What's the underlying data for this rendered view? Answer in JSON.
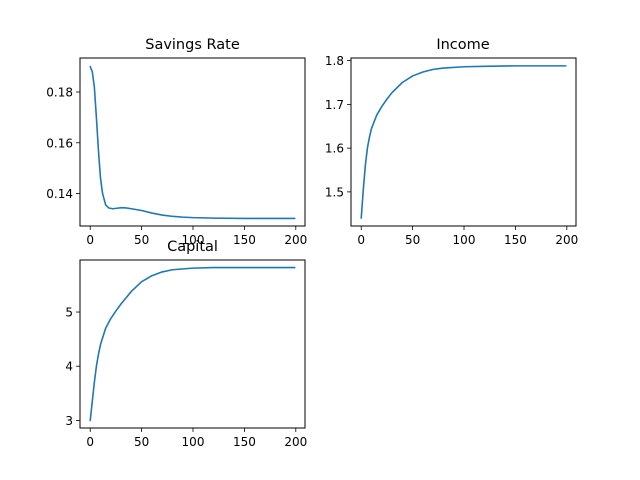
{
  "figure": {
    "line_color": "#1f77b4",
    "background": "#ffffff"
  },
  "chart_data": [
    {
      "type": "line",
      "title": "Savings Rate",
      "xlabel": "",
      "ylabel": "",
      "xlim": [
        -9.95,
        208.95
      ],
      "ylim": [
        0.1272,
        0.1934
      ],
      "xticks": [
        0,
        50,
        100,
        150,
        200
      ],
      "yticks": [
        0.14,
        0.16,
        0.18
      ],
      "xtick_labels": [
        "0",
        "50",
        "100",
        "150",
        "200"
      ],
      "ytick_labels": [
        "0.14",
        "0.16",
        "0.18"
      ],
      "grid": false,
      "series": [
        {
          "x": [
            0,
            2,
            4,
            6,
            8,
            10,
            12,
            15,
            18,
            22,
            26,
            30,
            35,
            40,
            50,
            60,
            70,
            80,
            90,
            100,
            120,
            150,
            199
          ],
          "y": [
            0.19,
            0.188,
            0.182,
            0.17,
            0.157,
            0.146,
            0.14,
            0.1355,
            0.1343,
            0.134,
            0.1342,
            0.1344,
            0.1343,
            0.134,
            0.1333,
            0.1323,
            0.1315,
            0.131,
            0.1307,
            0.1305,
            0.1303,
            0.1302,
            0.1302
          ]
        }
      ]
    },
    {
      "type": "line",
      "title": "Income",
      "xlabel": "",
      "ylabel": "",
      "xlim": [
        -9.95,
        208.95
      ],
      "ylim": [
        1.422,
        1.806
      ],
      "xticks": [
        0,
        50,
        100,
        150,
        200
      ],
      "yticks": [
        1.5,
        1.6,
        1.7,
        1.8
      ],
      "xtick_labels": [
        "0",
        "50",
        "100",
        "150",
        "200"
      ],
      "ytick_labels": [
        "1.5",
        "1.6",
        "1.7",
        "1.8"
      ],
      "grid": false,
      "series": [
        {
          "x": [
            0,
            2,
            4,
            6,
            8,
            10,
            15,
            20,
            25,
            30,
            40,
            50,
            60,
            70,
            80,
            100,
            120,
            150,
            199
          ],
          "y": [
            1.44,
            1.505,
            1.56,
            1.6,
            1.625,
            1.645,
            1.675,
            1.695,
            1.712,
            1.727,
            1.75,
            1.765,
            1.774,
            1.78,
            1.783,
            1.786,
            1.787,
            1.788,
            1.788
          ]
        }
      ]
    },
    {
      "type": "line",
      "title": "Capital",
      "xlabel": "",
      "ylabel": "",
      "xlim": [
        -9.95,
        208.95
      ],
      "ylim": [
        2.86,
        5.96
      ],
      "xticks": [
        0,
        50,
        100,
        150,
        200
      ],
      "yticks": [
        3,
        4,
        5
      ],
      "xtick_labels": [
        "0",
        "50",
        "100",
        "150",
        "200"
      ],
      "ytick_labels": [
        "3",
        "4",
        "5"
      ],
      "grid": false,
      "series": [
        {
          "x": [
            0,
            2,
            4,
            6,
            8,
            10,
            15,
            20,
            25,
            30,
            40,
            50,
            60,
            70,
            80,
            100,
            120,
            150,
            199
          ],
          "y": [
            3.0,
            3.35,
            3.7,
            4.0,
            4.22,
            4.4,
            4.7,
            4.88,
            5.02,
            5.15,
            5.38,
            5.56,
            5.67,
            5.74,
            5.78,
            5.81,
            5.82,
            5.82,
            5.82
          ]
        }
      ]
    }
  ]
}
